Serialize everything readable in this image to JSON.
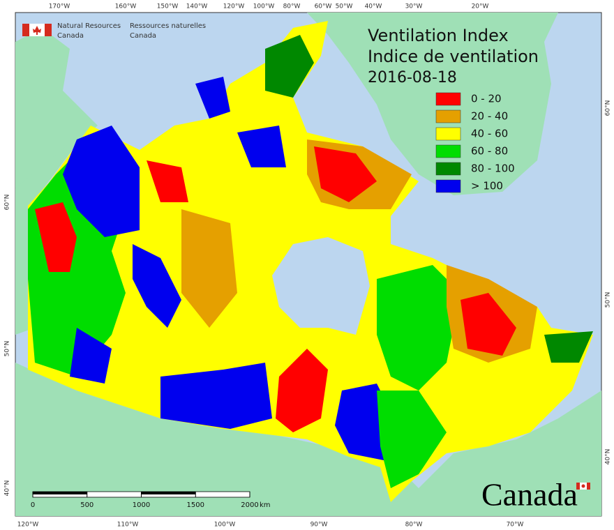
{
  "header": {
    "agency_en": [
      "Natural Resources",
      "Canada"
    ],
    "agency_fr": [
      "Ressources naturelles",
      "Canada"
    ]
  },
  "map": {
    "title_en": "Ventilation Index",
    "title_fr": "Indice de ventilation",
    "date": "2016-08-18",
    "legend": [
      {
        "label": "0 - 20",
        "color": "#ff0000"
      },
      {
        "label": "20 - 40",
        "color": "#e5a000"
      },
      {
        "label": "40 - 60",
        "color": "#ffff00"
      },
      {
        "label": "60 - 80",
        "color": "#00dd00"
      },
      {
        "label": "80 - 100",
        "color": "#008800"
      },
      {
        "label": "> 100",
        "color": "#0000ee"
      }
    ],
    "graticule": {
      "top": [
        "170°W",
        "160°W",
        "150°W",
        "140°W",
        "120°W",
        "100°W",
        "80°W",
        "60°W",
        "50°W",
        "40°W",
        "30°W",
        "20°W"
      ],
      "bottom": [
        "120°W",
        "110°W",
        "100°W",
        "90°W",
        "80°W",
        "70°W"
      ],
      "left": [
        "60°N",
        "50°N",
        "40°N"
      ],
      "right": [
        "60°N",
        "50°N",
        "40°N"
      ]
    },
    "scale_bar": {
      "labels": [
        0,
        500,
        1000,
        1500,
        2000
      ],
      "unit": "km"
    }
  },
  "wordmark": "Canada"
}
